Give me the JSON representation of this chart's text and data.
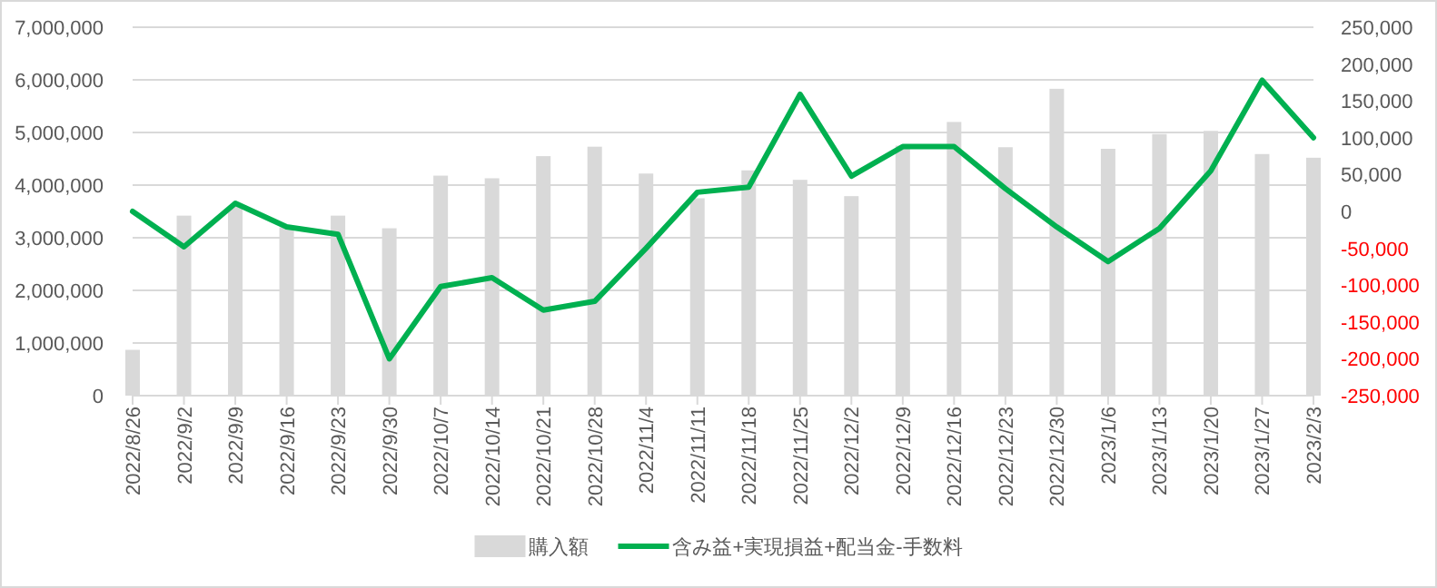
{
  "chart_data": {
    "type": "bar",
    "categories": [
      "2022/8/26",
      "2022/9/2",
      "2022/9/9",
      "2022/9/16",
      "2022/9/23",
      "2022/9/30",
      "2022/10/7",
      "2022/10/14",
      "2022/10/21",
      "2022/10/28",
      "2022/11/4",
      "2022/11/11",
      "2022/11/18",
      "2022/11/25",
      "2022/12/2",
      "2022/12/9",
      "2022/12/16",
      "2022/12/23",
      "2022/12/30",
      "2023/1/6",
      "2023/1/13",
      "2023/1/20",
      "2023/1/27",
      "2023/2/3"
    ],
    "series": [
      {
        "name": "購入額",
        "color": "#d9d9d9",
        "values": [
          870000,
          3420000,
          3600000,
          3200000,
          3420000,
          3180000,
          4180000,
          4130000,
          4550000,
          4730000,
          4220000,
          3750000,
          4280000,
          4100000,
          3790000,
          4750000,
          5200000,
          4720000,
          5830000,
          4690000,
          4970000,
          5030000,
          4590000,
          4520000
        ]
      },
      {
        "name": "含み益+実現損益+配当金-手数料",
        "type": "line",
        "axis": "y2",
        "color": "#00b050",
        "values": [
          0,
          -48000,
          11000,
          -21000,
          -31000,
          -200000,
          -102000,
          -90000,
          -134000,
          -122000,
          -50000,
          26000,
          33000,
          159000,
          48000,
          88000,
          88000,
          31000,
          -21000,
          -68000,
          -23000,
          55000,
          178000,
          100000
        ]
      }
    ],
    "ylim": [
      0,
      7000000
    ],
    "yticks": [
      {
        "value": 0,
        "label": "0"
      },
      {
        "value": 1000000,
        "label": "1,000,000"
      },
      {
        "value": 2000000,
        "label": "2,000,000"
      },
      {
        "value": 3000000,
        "label": "3,000,000"
      },
      {
        "value": 4000000,
        "label": "4,000,000"
      },
      {
        "value": 5000000,
        "label": "5,000,000"
      },
      {
        "value": 6000000,
        "label": "6,000,000"
      },
      {
        "value": 7000000,
        "label": "7,000,000"
      }
    ],
    "y2lim": [
      -250000,
      250000
    ],
    "y2ticks": [
      {
        "value": -250000,
        "label": "-250,000"
      },
      {
        "value": -200000,
        "label": "-200,000"
      },
      {
        "value": -150000,
        "label": "-150,000"
      },
      {
        "value": -100000,
        "label": "-100,000"
      },
      {
        "value": -50000,
        "label": "-50,000"
      },
      {
        "value": 0,
        "label": "0"
      },
      {
        "value": 50000,
        "label": "50,000"
      },
      {
        "value": 100000,
        "label": "100,000"
      },
      {
        "value": 150000,
        "label": "150,000"
      },
      {
        "value": 200000,
        "label": "200,000"
      },
      {
        "value": 250000,
        "label": "250,000"
      }
    ],
    "grid": "y",
    "legend": "bottom",
    "marker": "none",
    "line_style": "solid"
  }
}
